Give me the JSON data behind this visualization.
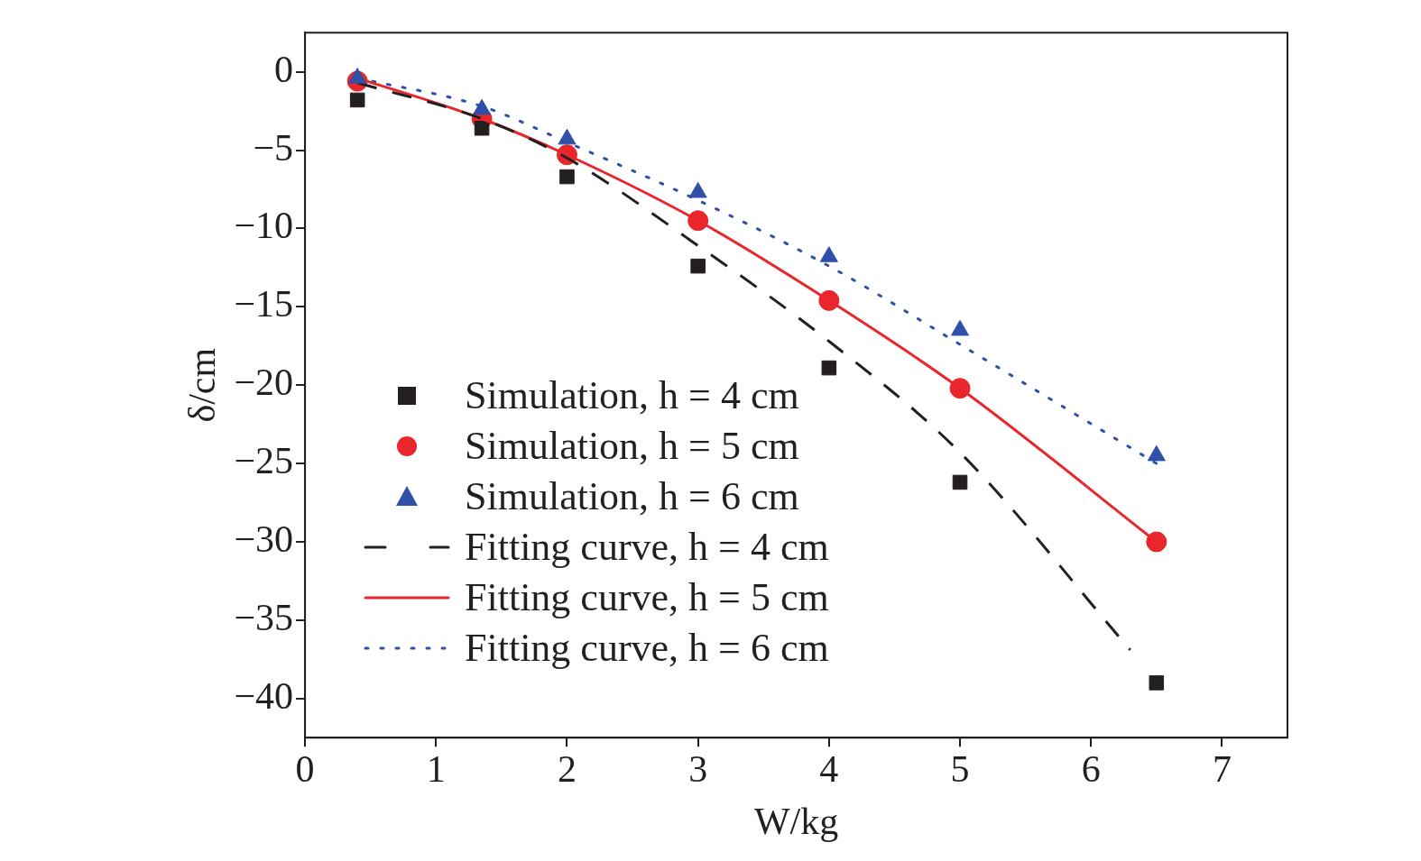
{
  "chart_data": {
    "type": "scatter",
    "xlabel": "W/kg",
    "ylabel": "δ/cm",
    "xlim": [
      0,
      7.5
    ],
    "ylim": [
      -42.5,
      2.5
    ],
    "xticks": [
      0,
      1,
      2,
      3,
      4,
      5,
      6,
      7
    ],
    "yticks": [
      {
        "value": 0,
        "label": "0"
      },
      {
        "value": -5,
        "label": "−5"
      },
      {
        "value": -10,
        "label": "−10"
      },
      {
        "value": -15,
        "label": "−15"
      },
      {
        "value": -20,
        "label": "−20"
      },
      {
        "value": -25,
        "label": "−25"
      },
      {
        "value": -30,
        "label": "−30"
      },
      {
        "value": -35,
        "label": "−35"
      },
      {
        "value": -40,
        "label": "−40"
      }
    ],
    "grid": false,
    "legend": "bottom left",
    "series": [
      {
        "name": "Simulation, h = 4 cm",
        "type": "scatter",
        "marker": "square",
        "color": "#231f20",
        "x": [
          0.4,
          1.35,
          2,
          3,
          4,
          5,
          6.5
        ],
        "values": [
          -1.8,
          -3.6,
          -6.7,
          -12.4,
          -18.9,
          -26.2,
          -39.0
        ]
      },
      {
        "name": "Simulation, h = 5 cm",
        "type": "scatter",
        "marker": "circle",
        "color": "#e8262b",
        "x": [
          0.4,
          1.35,
          2,
          3,
          4,
          5,
          6.5
        ],
        "values": [
          -0.6,
          -3.0,
          -5.3,
          -9.5,
          -14.6,
          -20.2,
          -30.0
        ]
      },
      {
        "name": "Simulation, h = 6 cm",
        "type": "scatter",
        "marker": "triangle",
        "color": "#2f4fa8",
        "x": [
          0.4,
          1.35,
          2,
          3,
          4,
          5,
          6.5
        ],
        "values": [
          -0.4,
          -2.4,
          -4.3,
          -7.7,
          -11.8,
          -16.5,
          -24.5
        ]
      },
      {
        "name": "Fitting curve, h = 4 cm",
        "type": "line",
        "line_style": "dashed",
        "marker": "none",
        "color": "#231f20",
        "x": [
          0.4,
          1.35,
          2,
          3,
          4,
          5,
          6.3
        ],
        "values": [
          -0.7,
          -3.0,
          -5.5,
          -11.1,
          -17.2,
          -24.3,
          -36.9
        ]
      },
      {
        "name": "Fitting curve, h = 5 cm",
        "type": "line",
        "line_style": "solid",
        "marker": "none",
        "color": "#e8262b",
        "x": [
          0.4,
          1.35,
          2,
          3,
          4,
          5,
          6.5
        ],
        "values": [
          -0.4,
          -3.0,
          -5.3,
          -9.5,
          -14.6,
          -20.2,
          -30.0
        ]
      },
      {
        "name": "Fitting curve, h = 6 cm",
        "type": "line",
        "line_style": "dotted",
        "marker": "none",
        "color": "#2f4fa8",
        "x": [
          0.4,
          1.35,
          2,
          3,
          4,
          5,
          6.5
        ],
        "values": [
          -0.4,
          -2.2,
          -4.5,
          -8.2,
          -12.4,
          -17.4,
          -25.0
        ]
      }
    ]
  }
}
